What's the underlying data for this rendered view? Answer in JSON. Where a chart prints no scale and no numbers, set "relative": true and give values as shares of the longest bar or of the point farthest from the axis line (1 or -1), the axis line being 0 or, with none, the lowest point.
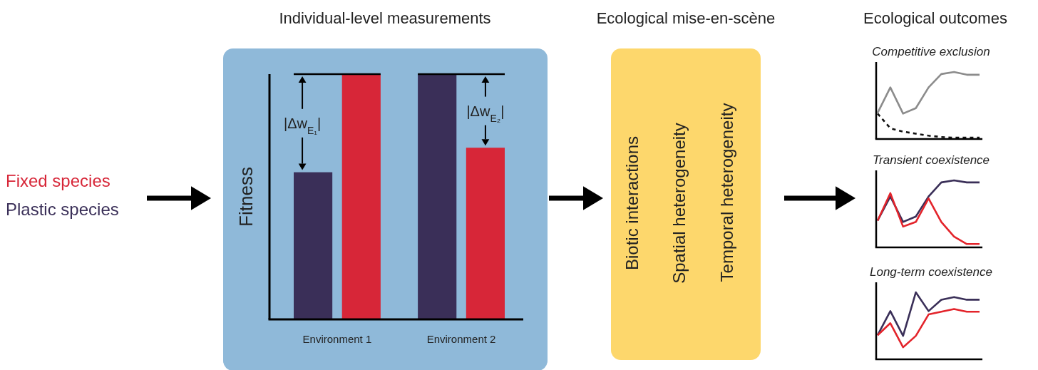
{
  "chart_data": [
    {
      "type": "bar",
      "title": "Individual-level measurements",
      "ylabel": "Fitness",
      "categories": [
        "Environment 1",
        "Environment 2"
      ],
      "relative": true,
      "legend": "left",
      "series": [
        {
          "name": "Plastic species",
          "color": "#3a2f58",
          "values": [
            0.6,
            1
          ]
        },
        {
          "name": "Fixed species",
          "color": "#d72638",
          "values": [
            1,
            0.7
          ]
        }
      ],
      "annotations": [
        "|Δw$_{E₁}$|",
        "|Δw$_{E₂}$|"
      ]
    },
    {
      "type": "other",
      "title": "Ecological mise-en-scène",
      "annotations": [
        "Biotic interactions",
        "Spatial heterogeneity",
        "Temporal heterogeneity"
      ]
    },
    {
      "type": "line",
      "title": "Ecological outcomes",
      "subtitle": "Competitive exclusion",
      "relative": true,
      "categories": [
        null,
        null,
        null,
        null,
        null,
        null,
        null,
        null,
        null
      ],
      "series": [
        {
          "color": "#8c8c8c",
          "values": [
            0.39,
            0.77,
            0.38,
            0.46,
            0.77,
            0.97,
            1,
            0.96,
            0.96
          ]
        },
        {
          "color": "#111111",
          "line_style": "dashed",
          "values": [
            0.38,
            0.16,
            0.11,
            0.08,
            0.05,
            0.03,
            0.02,
            0.02,
            0.02
          ]
        }
      ]
    },
    {
      "type": "line",
      "subtitle": "Transient coexistence",
      "relative": true,
      "categories": [
        null,
        null,
        null,
        null,
        null,
        null,
        null,
        null,
        null
      ],
      "series": [
        {
          "color": "#3a2f58",
          "values": [
            0.4,
            0.76,
            0.38,
            0.46,
            0.76,
            0.97,
            1,
            0.97,
            0.97
          ]
        },
        {
          "color": "#e3242b",
          "values": [
            0.4,
            0.81,
            0.31,
            0.38,
            0.73,
            0.38,
            0.16,
            0.05,
            0.05
          ]
        }
      ]
    },
    {
      "type": "line",
      "subtitle": "Long-term coexistence",
      "relative": true,
      "categories": [
        null,
        null,
        null,
        null,
        null,
        null,
        null,
        null,
        null
      ],
      "series": [
        {
          "color": "#3a2f58",
          "values": [
            0.36,
            0.72,
            0.35,
            1,
            0.72,
            0.89,
            0.93,
            0.89,
            0.89
          ]
        },
        {
          "color": "#e3242b",
          "values": [
            0.36,
            0.54,
            0.18,
            0.35,
            0.67,
            0.71,
            0.75,
            0.71,
            0.71
          ]
        }
      ]
    }
  ]
}
